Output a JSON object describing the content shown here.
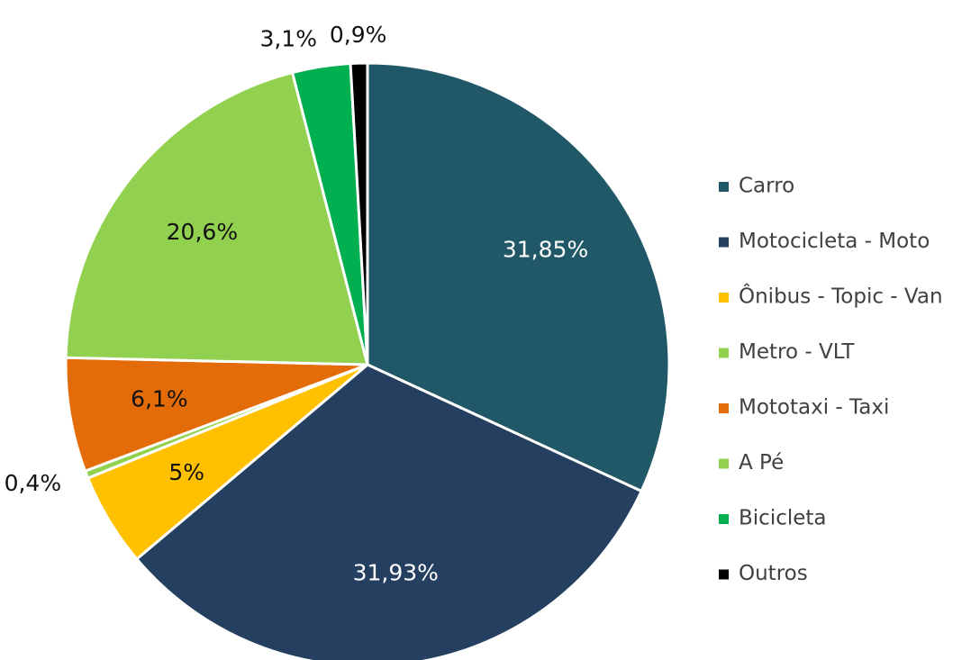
{
  "chart_data": {
    "type": "pie",
    "categories": [
      "Carro",
      "Motocicleta - Moto",
      "Ônibus - Topic - Van",
      "Metro - VLT",
      "Mototaxi - Taxi",
      "A Pé",
      "Bicicleta",
      "Outros"
    ],
    "values": [
      31.85,
      31.93,
      5,
      0.4,
      6.1,
      20.6,
      3.1,
      0.9
    ],
    "value_labels": [
      "31,85%",
      "31,93%",
      "5%",
      "0,4%",
      "6,1%",
      "20,6%",
      "3,1%",
      "0,9%"
    ],
    "colors": [
      "#215868",
      "#243f60",
      "#ffc000",
      "#92d050",
      "#e36c09",
      "#92d050",
      "#00b050",
      "#000000"
    ],
    "legend": "right"
  }
}
